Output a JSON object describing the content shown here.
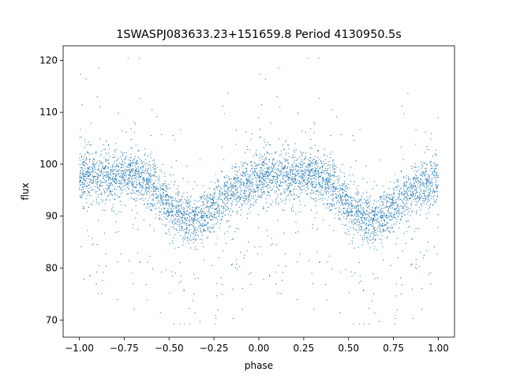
{
  "chart_data": {
    "type": "scatter",
    "title": "1SWASPJ083633.23+151659.8 Period 4130950.5s",
    "xlabel": "phase",
    "ylabel": "flux",
    "xlim": [
      -1.09,
      1.09
    ],
    "ylim": [
      66.7,
      122.8
    ],
    "xticks": [
      -1.0,
      -0.75,
      -0.5,
      -0.25,
      0.0,
      0.25,
      0.5,
      0.75,
      1.0
    ],
    "xtick_labels": [
      "−1.00",
      "−0.75",
      "−0.50",
      "−0.25",
      "0.00",
      "0.25",
      "0.50",
      "0.75",
      "1.00"
    ],
    "yticks": [
      70,
      80,
      90,
      100,
      110,
      120
    ],
    "ytick_labels": [
      "70",
      "80",
      "90",
      "100",
      "110",
      "120"
    ],
    "grid": false,
    "marker_color": "#1f77b4",
    "profile": {
      "phase": [
        0.0,
        0.05,
        0.1,
        0.15,
        0.2,
        0.25,
        0.3,
        0.35,
        0.4,
        0.45,
        0.5,
        0.55,
        0.6,
        0.65,
        0.7,
        0.75,
        0.8,
        0.85,
        0.9,
        0.95,
        1.0
      ],
      "flux": [
        97,
        97.5,
        97.5,
        98,
        97.5,
        98,
        98,
        97,
        96,
        94,
        92,
        90,
        89.5,
        89.5,
        90,
        92,
        93,
        94.5,
        95.5,
        96.5,
        97
      ]
    },
    "scatter_std": 2.5,
    "n_points": 5000
  }
}
